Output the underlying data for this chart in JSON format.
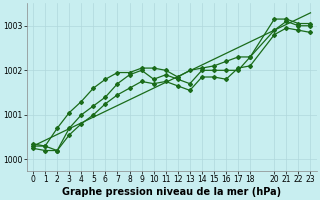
{
  "bg_color": "#c8eef0",
  "grid_color": "#b0d8dc",
  "line_color": "#1a6b1a",
  "marker": "D",
  "markersize": 2.0,
  "linewidth": 0.9,
  "x": [
    0,
    1,
    2,
    3,
    4,
    5,
    6,
    7,
    8,
    9,
    10,
    11,
    12,
    13,
    14,
    15,
    16,
    17,
    18,
    20,
    21,
    22,
    23
  ],
  "y_main": [
    1000.3,
    1000.3,
    1000.2,
    1000.7,
    1001.0,
    1001.2,
    1001.4,
    1001.7,
    1001.9,
    1002.0,
    1001.8,
    1001.9,
    1001.8,
    1001.7,
    1002.0,
    1002.0,
    1002.0,
    1002.0,
    1002.3,
    1002.9,
    1003.1,
    1003.0,
    1003.0
  ],
  "y_high": [
    1000.35,
    1000.3,
    1000.7,
    1001.05,
    1001.3,
    1001.6,
    1001.8,
    1001.95,
    1001.95,
    1002.05,
    1002.05,
    1002.0,
    1001.85,
    1002.0,
    1002.05,
    1002.1,
    1002.2,
    1002.3,
    1002.3,
    1003.15,
    1003.15,
    1003.05,
    1003.05
  ],
  "y_low": [
    1000.25,
    1000.2,
    1000.2,
    1000.55,
    1000.8,
    1001.0,
    1001.25,
    1001.45,
    1001.6,
    1001.75,
    1001.7,
    1001.75,
    1001.65,
    1001.55,
    1001.85,
    1001.85,
    1001.8,
    1002.05,
    1002.1,
    1002.8,
    1002.95,
    1002.9,
    1002.85
  ],
  "y_trend": [
    1000.3,
    1000.43,
    1000.56,
    1000.69,
    1000.82,
    1000.95,
    1001.08,
    1001.21,
    1001.34,
    1001.47,
    1001.6,
    1001.73,
    1001.86,
    1001.99,
    1002.12,
    1002.25,
    1002.38,
    1002.51,
    1002.64,
    1002.9,
    1003.03,
    1003.16,
    1003.29
  ],
  "xlim": [
    -0.5,
    23.5
  ],
  "ylim": [
    999.75,
    1003.5
  ],
  "yticks": [
    1000,
    1001,
    1002,
    1003
  ],
  "xticks": [
    0,
    1,
    2,
    3,
    4,
    5,
    6,
    7,
    8,
    9,
    10,
    11,
    12,
    13,
    14,
    15,
    16,
    17,
    18,
    20,
    21,
    22,
    23
  ],
  "xlabel": "Graphe pression niveau de la mer (hPa)",
  "tick_fontsize": 5.5,
  "label_fontsize": 7
}
